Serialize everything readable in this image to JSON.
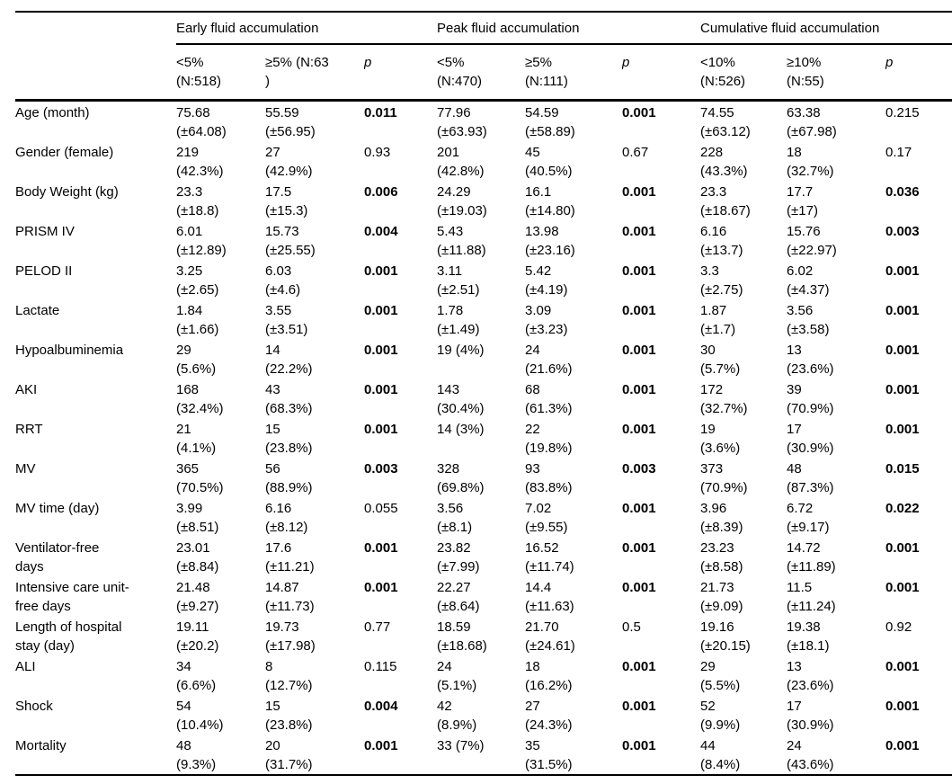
{
  "table": {
    "groups": [
      {
        "label": "Early fluid accumulation"
      },
      {
        "label": "Peak fluid accumulation"
      },
      {
        "label": "Cumulative fluid accumulation"
      }
    ],
    "subheaders": [
      {
        "lines": [
          "<5%",
          "(N:518)"
        ]
      },
      {
        "lines": [
          "≥5% (N:63",
          ")"
        ]
      },
      {
        "lines": [
          "p"
        ],
        "italic": true
      },
      {
        "lines": [
          "<5%",
          "(N:470)"
        ]
      },
      {
        "lines": [
          "≥5%",
          "(N:111)"
        ]
      },
      {
        "lines": [
          "p"
        ],
        "italic": true
      },
      {
        "lines": [
          "<10%",
          "(N:526)"
        ]
      },
      {
        "lines": [
          "≥10%",
          "(N:55)"
        ]
      },
      {
        "lines": [
          "p"
        ],
        "italic": true
      }
    ],
    "rows": [
      {
        "label": [
          "Age (month)"
        ],
        "cells": [
          {
            "v": "75.68",
            "s": "(±64.08)"
          },
          {
            "v": "55.59",
            "s": "(±56.95)"
          },
          {
            "v": "0.011",
            "p": true,
            "b": true
          },
          {
            "v": "77.96",
            "s": "(±63.93)"
          },
          {
            "v": "54.59",
            "s": "(±58.89)"
          },
          {
            "v": "0.001",
            "p": true,
            "b": true
          },
          {
            "v": "74.55",
            "s": "(±63.12)"
          },
          {
            "v": "63.38",
            "s": "(±67.98)"
          },
          {
            "v": "0.215",
            "p": true,
            "b": false
          }
        ]
      },
      {
        "label": [
          "Gender (female)"
        ],
        "cells": [
          {
            "v": "219",
            "s": "(42.3%)"
          },
          {
            "v": "27",
            "s": "(42.9%)"
          },
          {
            "v": "0.93",
            "p": true,
            "b": false
          },
          {
            "v": "201",
            "s": "(42.8%)"
          },
          {
            "v": "45",
            "s": "(40.5%)"
          },
          {
            "v": "0.67",
            "p": true,
            "b": false
          },
          {
            "v": "228",
            "s": "(43.3%)"
          },
          {
            "v": "18",
            "s": "(32.7%)"
          },
          {
            "v": "0.17",
            "p": true,
            "b": false
          }
        ]
      },
      {
        "label": [
          "Body Weight (kg)"
        ],
        "cells": [
          {
            "v": "23.3",
            "s": "(±18.8)"
          },
          {
            "v": "17.5",
            "s": "(±15.3)"
          },
          {
            "v": "0.006",
            "p": true,
            "b": true
          },
          {
            "v": "24.29",
            "s": "(±19.03)"
          },
          {
            "v": "16.1",
            "s": "(±14.80)"
          },
          {
            "v": "0.001",
            "p": true,
            "b": true
          },
          {
            "v": "23.3",
            "s": "(±18.67)"
          },
          {
            "v": "17.7",
            "s": "(±17)"
          },
          {
            "v": "0.036",
            "p": true,
            "b": true
          }
        ]
      },
      {
        "label": [
          "PRISM IV"
        ],
        "cells": [
          {
            "v": "6.01",
            "s": "(±12.89)"
          },
          {
            "v": "15.73",
            "s": "(±25.55)"
          },
          {
            "v": "0.004",
            "p": true,
            "b": true
          },
          {
            "v": "5.43",
            "s": "(±11.88)"
          },
          {
            "v": "13.98",
            "s": "(±23.16)"
          },
          {
            "v": "0.001",
            "p": true,
            "b": true
          },
          {
            "v": "6.16",
            "s": "(±13.7)"
          },
          {
            "v": "15.76",
            "s": "(±22.97)"
          },
          {
            "v": "0.003",
            "p": true,
            "b": true
          }
        ]
      },
      {
        "label": [
          "PELOD II"
        ],
        "cells": [
          {
            "v": "3.25",
            "s": "(±2.65)"
          },
          {
            "v": "6.03",
            "s": "(±4.6)"
          },
          {
            "v": "0.001",
            "p": true,
            "b": true
          },
          {
            "v": "3.11",
            "s": "(±2.51)"
          },
          {
            "v": "5.42",
            "s": "(±4.19)"
          },
          {
            "v": "0.001",
            "p": true,
            "b": true
          },
          {
            "v": "3.3",
            "s": "(±2.75)"
          },
          {
            "v": "6.02",
            "s": "(±4.37)"
          },
          {
            "v": "0.001",
            "p": true,
            "b": true
          }
        ]
      },
      {
        "label": [
          "Lactate"
        ],
        "cells": [
          {
            "v": "1.84",
            "s": "(±1.66)"
          },
          {
            "v": "3.55",
            "s": "(±3.51)"
          },
          {
            "v": "0.001",
            "p": true,
            "b": true
          },
          {
            "v": "1.78",
            "s": "(±1.49)"
          },
          {
            "v": "3.09",
            "s": "(±3.23)"
          },
          {
            "v": "0.001",
            "p": true,
            "b": true
          },
          {
            "v": "1.87",
            "s": "(±1.7)"
          },
          {
            "v": "3.56",
            "s": "(±3.58)"
          },
          {
            "v": "0.001",
            "p": true,
            "b": true
          }
        ]
      },
      {
        "label": [
          "Hypoalbuminemia"
        ],
        "cells": [
          {
            "v": "29",
            "s": "(5.6%)"
          },
          {
            "v": "14",
            "s": "(22.2%)"
          },
          {
            "v": "0.001",
            "p": true,
            "b": true
          },
          {
            "v": "19 (4%)"
          },
          {
            "v": "24",
            "s": "(21.6%)"
          },
          {
            "v": "0.001",
            "p": true,
            "b": true
          },
          {
            "v": "30",
            "s": "(5.7%)"
          },
          {
            "v": "13",
            "s": "(23.6%)"
          },
          {
            "v": "0.001",
            "p": true,
            "b": true
          }
        ]
      },
      {
        "label": [
          "AKI"
        ],
        "cells": [
          {
            "v": "168",
            "s": "(32.4%)"
          },
          {
            "v": "43",
            "s": "(68.3%)"
          },
          {
            "v": "0.001",
            "p": true,
            "b": true
          },
          {
            "v": "143",
            "s": "(30.4%)"
          },
          {
            "v": "68",
            "s": "(61.3%)"
          },
          {
            "v": "0.001",
            "p": true,
            "b": true
          },
          {
            "v": "172",
            "s": "(32.7%)"
          },
          {
            "v": "39",
            "s": "(70.9%)"
          },
          {
            "v": "0.001",
            "p": true,
            "b": true
          }
        ]
      },
      {
        "label": [
          "RRT"
        ],
        "cells": [
          {
            "v": "21",
            "s": "(4.1%)"
          },
          {
            "v": "15",
            "s": "(23.8%)"
          },
          {
            "v": "0.001",
            "p": true,
            "b": true
          },
          {
            "v": "14 (3%)"
          },
          {
            "v": "22",
            "s": "(19.8%)"
          },
          {
            "v": "0.001",
            "p": true,
            "b": true
          },
          {
            "v": "19",
            "s": "(3.6%)"
          },
          {
            "v": "17",
            "s": "(30.9%)"
          },
          {
            "v": "0.001",
            "p": true,
            "b": true
          }
        ]
      },
      {
        "label": [
          "MV"
        ],
        "cells": [
          {
            "v": "365",
            "s": "(70.5%)"
          },
          {
            "v": "56",
            "s": "(88.9%)"
          },
          {
            "v": "0.003",
            "p": true,
            "b": true
          },
          {
            "v": "328",
            "s": "(69.8%)"
          },
          {
            "v": "93",
            "s": "(83.8%)"
          },
          {
            "v": "0.003",
            "p": true,
            "b": true
          },
          {
            "v": "373",
            "s": "(70.9%)"
          },
          {
            "v": "48",
            "s": "(87.3%)"
          },
          {
            "v": "0.015",
            "p": true,
            "b": true
          }
        ]
      },
      {
        "label": [
          "MV time (day)"
        ],
        "cells": [
          {
            "v": "3.99",
            "s": "(±8.51)"
          },
          {
            "v": "6.16",
            "s": "(±8.12)"
          },
          {
            "v": "0.055",
            "p": true,
            "b": false
          },
          {
            "v": "3.56",
            "s": "(±8.1)"
          },
          {
            "v": "7.02",
            "s": "(±9.55)"
          },
          {
            "v": "0.001",
            "p": true,
            "b": true
          },
          {
            "v": "3.96",
            "s": "(±8.39)"
          },
          {
            "v": "6.72",
            "s": "(±9.17)"
          },
          {
            "v": "0.022",
            "p": true,
            "b": true
          }
        ]
      },
      {
        "label": [
          "Ventilator-free",
          "days"
        ],
        "cells": [
          {
            "v": "23.01",
            "s": "(±8.84)"
          },
          {
            "v": "17.6",
            "s": "(±11.21)"
          },
          {
            "v": "0.001",
            "p": true,
            "b": true
          },
          {
            "v": "23.82",
            "s": "(±7.99)"
          },
          {
            "v": "16.52",
            "s": "(±11.74)"
          },
          {
            "v": "0.001",
            "p": true,
            "b": true
          },
          {
            "v": "23.23",
            "s": "(±8.58)"
          },
          {
            "v": "14.72",
            "s": "(±11.89)"
          },
          {
            "v": "0.001",
            "p": true,
            "b": true
          }
        ]
      },
      {
        "label": [
          "Intensive care unit-",
          "free days"
        ],
        "cells": [
          {
            "v": "21.48",
            "s": "(±9.27)"
          },
          {
            "v": "14.87",
            "s": "(±11.73)"
          },
          {
            "v": "0.001",
            "p": true,
            "b": true
          },
          {
            "v": "22.27",
            "s": "(±8.64)"
          },
          {
            "v": "14.4",
            "s": "(±11.63)"
          },
          {
            "v": "0.001",
            "p": true,
            "b": true
          },
          {
            "v": "21.73",
            "s": "(±9.09)"
          },
          {
            "v": "11.5",
            "s": "(±11.24)"
          },
          {
            "v": "0.001",
            "p": true,
            "b": true
          }
        ]
      },
      {
        "label": [
          "Length of hospital",
          "stay (day)"
        ],
        "cells": [
          {
            "v": "19.11",
            "s": "(±20.2)"
          },
          {
            "v": "19.73",
            "s": "(±17.98)"
          },
          {
            "v": "0.77",
            "p": true,
            "b": false
          },
          {
            "v": "18.59",
            "s": "(±18.68)"
          },
          {
            "v": "21.70",
            "s": "(±24.61)"
          },
          {
            "v": "0.5",
            "p": true,
            "b": false
          },
          {
            "v": "19.16",
            "s": "(±20.15)"
          },
          {
            "v": "19.38",
            "s": "(±18.1)"
          },
          {
            "v": "0.92",
            "p": true,
            "b": false
          }
        ]
      },
      {
        "label": [
          "ALI"
        ],
        "cells": [
          {
            "v": "34",
            "s": "(6.6%)"
          },
          {
            "v": "8",
            "s": "(12.7%)"
          },
          {
            "v": "0.115",
            "p": true,
            "b": false
          },
          {
            "v": "24",
            "s": "(5.1%)"
          },
          {
            "v": "18",
            "s": "(16.2%)"
          },
          {
            "v": "0.001",
            "p": true,
            "b": true
          },
          {
            "v": "29",
            "s": "(5.5%)"
          },
          {
            "v": "13",
            "s": "(23.6%)"
          },
          {
            "v": "0.001",
            "p": true,
            "b": true
          }
        ]
      },
      {
        "label": [
          "Shock"
        ],
        "cells": [
          {
            "v": "54",
            "s": "(10.4%)"
          },
          {
            "v": "15",
            "s": "(23.8%)"
          },
          {
            "v": "0.004",
            "p": true,
            "b": true
          },
          {
            "v": "42",
            "s": "(8.9%)"
          },
          {
            "v": "27",
            "s": "(24.3%)"
          },
          {
            "v": "0.001",
            "p": true,
            "b": true
          },
          {
            "v": "52",
            "s": "(9.9%)"
          },
          {
            "v": "17",
            "s": "(30.9%)"
          },
          {
            "v": "0.001",
            "p": true,
            "b": true
          }
        ]
      },
      {
        "label": [
          "Mortality"
        ],
        "cells": [
          {
            "v": "48",
            "s": "(9.3%)"
          },
          {
            "v": "20",
            "s": "(31.7%)"
          },
          {
            "v": "0.001",
            "p": true,
            "b": true
          },
          {
            "v": "33 (7%)"
          },
          {
            "v": "35",
            "s": "(31.5%)"
          },
          {
            "v": "0.001",
            "p": true,
            "b": true
          },
          {
            "v": "44",
            "s": "(8.4%)"
          },
          {
            "v": "24",
            "s": "(43.6%)"
          },
          {
            "v": "0.001",
            "p": true,
            "b": true
          }
        ]
      }
    ]
  }
}
